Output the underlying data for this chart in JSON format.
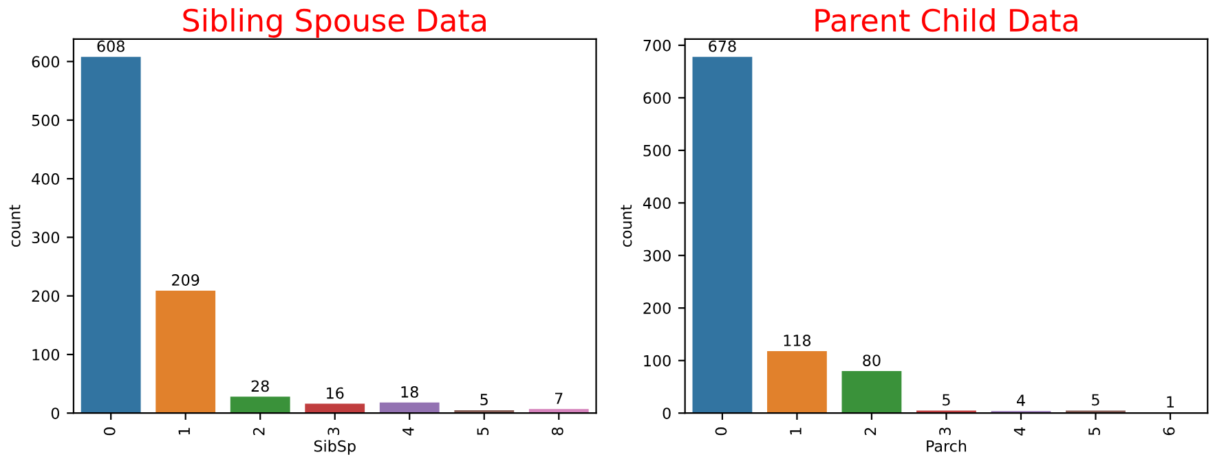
{
  "chart_data": [
    {
      "type": "bar",
      "title": "Sibling Spouse Data",
      "xlabel": "SibSp",
      "ylabel": "count",
      "categories": [
        "0",
        "1",
        "2",
        "3",
        "4",
        "5",
        "8"
      ],
      "values": [
        608,
        209,
        28,
        16,
        18,
        5,
        7
      ],
      "colors": [
        "#3274a1",
        "#e1812c",
        "#3a923a",
        "#c03d3e",
        "#9372b2",
        "#845b53",
        "#d684bd"
      ],
      "ylim": [
        0,
        638.4
      ],
      "yticks": [
        0,
        100,
        200,
        300,
        400,
        500,
        600
      ],
      "data_labels": true,
      "grid": false,
      "legend": false
    },
    {
      "type": "bar",
      "title": "Parent Child Data",
      "xlabel": "Parch",
      "ylabel": "count",
      "categories": [
        "0",
        "1",
        "2",
        "3",
        "4",
        "5",
        "6"
      ],
      "values": [
        678,
        118,
        80,
        5,
        4,
        5,
        1
      ],
      "colors": [
        "#3274a1",
        "#e1812c",
        "#3a923a",
        "#c03d3e",
        "#9372b2",
        "#845b53",
        "#d684bd"
      ],
      "ylim": [
        0,
        711.9
      ],
      "yticks": [
        0,
        100,
        200,
        300,
        400,
        500,
        600,
        700
      ],
      "data_labels": true,
      "grid": false,
      "legend": false
    }
  ]
}
